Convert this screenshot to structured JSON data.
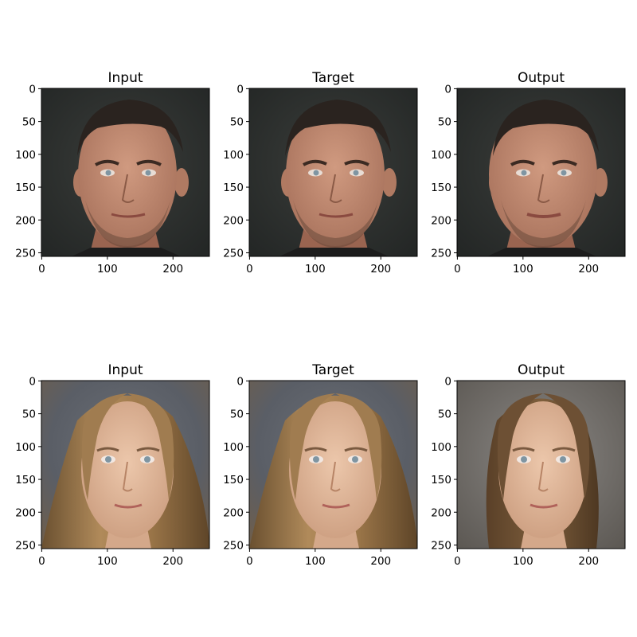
{
  "figure": {
    "rows": [
      {
        "subject": "man",
        "panels": [
          {
            "title": "Input",
            "variant": "input"
          },
          {
            "title": "Target",
            "variant": "target"
          },
          {
            "title": "Output",
            "variant": "output"
          }
        ]
      },
      {
        "subject": "woman",
        "panels": [
          {
            "title": "Input",
            "variant": "input"
          },
          {
            "title": "Target",
            "variant": "target"
          },
          {
            "title": "Output",
            "variant": "output"
          }
        ]
      }
    ],
    "x_ticks": [
      0,
      100,
      200
    ],
    "y_ticks": [
      0,
      50,
      100,
      150,
      200,
      250
    ],
    "image_extent": [
      0,
      256
    ]
  },
  "colors": {
    "man_background": "#2e312f",
    "man_skin": "#c08a72",
    "man_hair": "#2a231f",
    "woman_background": "#5a606a",
    "woman_skin": "#e2b99c",
    "woman_hair": "#8a6a45",
    "eye": "#7f95a2"
  }
}
